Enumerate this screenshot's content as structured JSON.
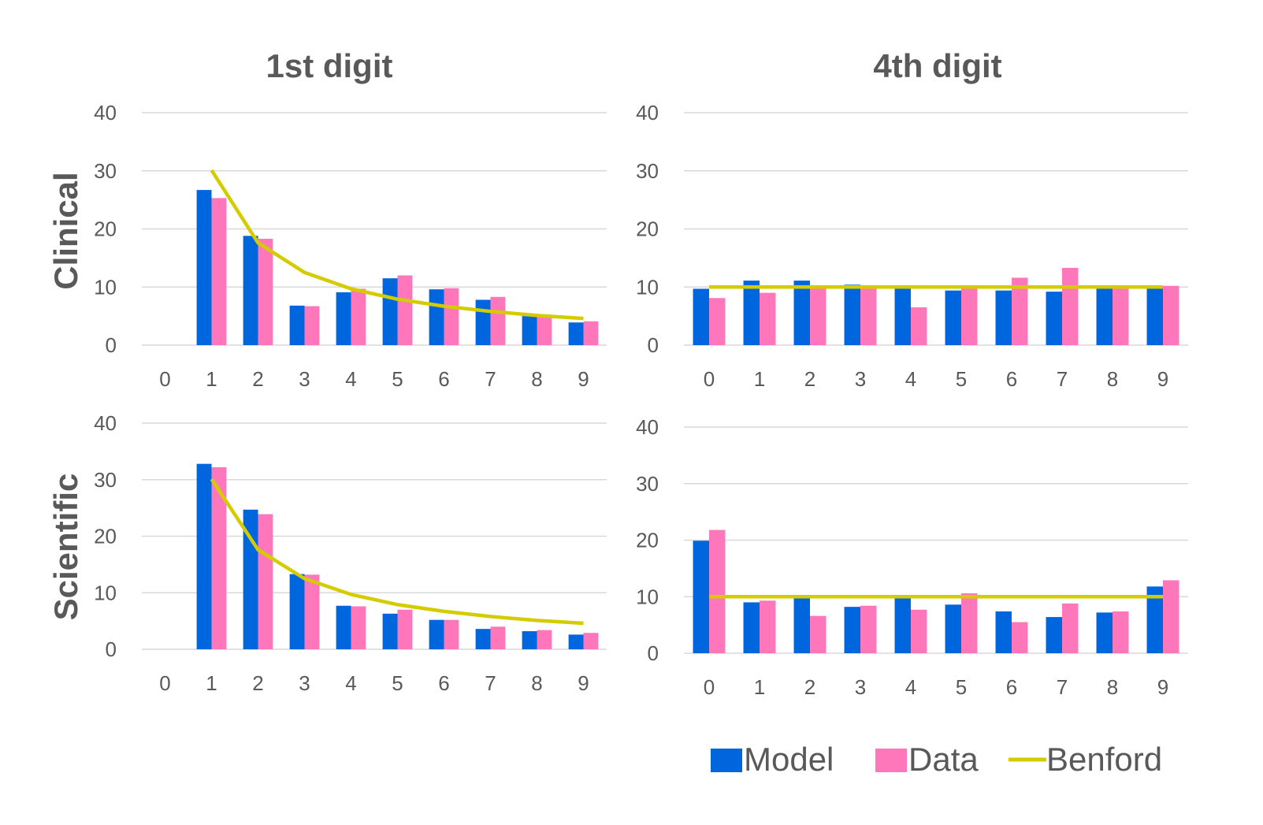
{
  "column_titles": [
    "1st digit",
    "4th digit"
  ],
  "row_titles": [
    "Clinical",
    "Scientific"
  ],
  "legend": [
    "Model",
    "Data",
    "Benford"
  ],
  "colors": {
    "model": "#0066dd",
    "data": "#ff77bb",
    "benford": "#d4cc00",
    "grid": "#d9d9d9",
    "text": "#595959"
  },
  "chart_data": [
    {
      "type": "bar",
      "title": "1st digit",
      "row": "Clinical",
      "categories": [
        "0",
        "1",
        "2",
        "3",
        "4",
        "5",
        "6",
        "7",
        "8",
        "9"
      ],
      "yticks": [
        "0",
        "10",
        "20",
        "30",
        "40"
      ],
      "ylim": [
        0,
        40
      ],
      "series": [
        {
          "name": "Model",
          "values": [
            0,
            26.7,
            18.8,
            6.8,
            9.1,
            11.5,
            9.6,
            7.8,
            5.0,
            3.9
          ]
        },
        {
          "name": "Data",
          "values": [
            0,
            25.3,
            18.3,
            6.7,
            9.7,
            12.0,
            9.8,
            8.3,
            5.1,
            4.1
          ]
        },
        {
          "name": "Benford",
          "type": "line",
          "values": [
            null,
            30.1,
            17.6,
            12.5,
            9.7,
            7.9,
            6.7,
            5.8,
            5.1,
            4.6
          ]
        }
      ]
    },
    {
      "type": "bar",
      "title": "4th digit",
      "row": "Clinical",
      "categories": [
        "0",
        "1",
        "2",
        "3",
        "4",
        "5",
        "6",
        "7",
        "8",
        "9"
      ],
      "yticks": [
        "0",
        "10",
        "20",
        "30",
        "40"
      ],
      "ylim": [
        0,
        40
      ],
      "series": [
        {
          "name": "Model",
          "values": [
            9.7,
            11.1,
            11.1,
            10.4,
            9.8,
            9.4,
            9.4,
            9.2,
            10.0,
            9.9
          ]
        },
        {
          "name": "Data",
          "values": [
            8.1,
            9.0,
            10.0,
            10.0,
            6.5,
            10.0,
            11.6,
            13.3,
            10.3,
            10.2
          ]
        },
        {
          "name": "Benford",
          "type": "line",
          "values": [
            10.0,
            10.0,
            10.0,
            10.0,
            10.0,
            10.0,
            10.0,
            10.0,
            10.0,
            10.0
          ]
        }
      ]
    },
    {
      "type": "bar",
      "title": "1st digit",
      "row": "Scientific",
      "categories": [
        "0",
        "1",
        "2",
        "3",
        "4",
        "5",
        "6",
        "7",
        "8",
        "9"
      ],
      "yticks": [
        "0",
        "10",
        "20",
        "30",
        "40"
      ],
      "ylim": [
        0,
        40
      ],
      "series": [
        {
          "name": "Model",
          "values": [
            0,
            32.8,
            24.7,
            13.3,
            7.7,
            6.3,
            5.2,
            3.6,
            3.2,
            2.6
          ]
        },
        {
          "name": "Data",
          "values": [
            0,
            32.2,
            23.9,
            13.2,
            7.6,
            7.0,
            5.2,
            4.0,
            3.4,
            2.9
          ]
        },
        {
          "name": "Benford",
          "type": "line",
          "values": [
            null,
            30.1,
            17.6,
            12.5,
            9.7,
            7.9,
            6.7,
            5.8,
            5.1,
            4.6
          ]
        }
      ]
    },
    {
      "type": "bar",
      "title": "4th digit",
      "row": "Scientific",
      "categories": [
        "0",
        "1",
        "2",
        "3",
        "4",
        "5",
        "6",
        "7",
        "8",
        "9"
      ],
      "yticks": [
        "0",
        "10",
        "20",
        "30",
        "40"
      ],
      "ylim": [
        0,
        40
      ],
      "series": [
        {
          "name": "Model",
          "values": [
            19.9,
            9.0,
            9.7,
            8.2,
            9.7,
            8.6,
            7.4,
            6.4,
            7.2,
            11.8
          ]
        },
        {
          "name": "Data",
          "values": [
            21.8,
            9.3,
            6.6,
            8.4,
            7.7,
            10.6,
            5.5,
            8.8,
            7.4,
            12.9
          ]
        },
        {
          "name": "Benford",
          "type": "line",
          "values": [
            10.0,
            10.0,
            10.0,
            10.0,
            10.0,
            10.0,
            10.0,
            10.0,
            10.0,
            10.0
          ]
        }
      ]
    }
  ]
}
